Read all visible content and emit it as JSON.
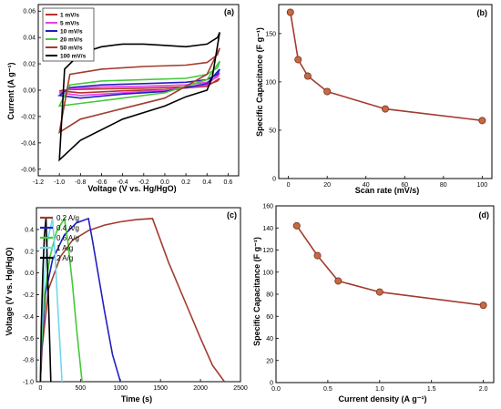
{
  "chart_data": [
    {
      "panel": "(a)",
      "type": "line",
      "xlabel": "Voltage (V vs. Hg/HgO)",
      "ylabel": "Current (A g⁻¹)",
      "xlim": [
        -1.2,
        0.7
      ],
      "ylim": [
        -0.065,
        0.065
      ],
      "xticks": [
        "-1.2",
        "-1.0",
        "-0.8",
        "-0.6",
        "-0.4",
        "-0.2",
        "0.0",
        "0.2",
        "0.4",
        "0.6"
      ],
      "yticks": [
        "-0.06",
        "-0.04",
        "-0.02",
        "0.00",
        "0.02",
        "0.04",
        "0.06"
      ],
      "legend_position": "top-left",
      "series": [
        {
          "name": "1 mV/s",
          "color": "#b5312c",
          "anodic": {
            "x": [
              -1.0,
              -0.9,
              -0.6,
              -0.2,
              0.2,
              0.4,
              0.5,
              0.52
            ],
            "y": [
              -0.0005,
              0.0005,
              0.001,
              0.0015,
              0.0025,
              0.004,
              0.007,
              0.009
            ]
          },
          "cathodic": {
            "x": [
              0.52,
              0.4,
              0.0,
              -0.4,
              -0.8,
              -1.0
            ],
            "y": [
              0.009,
              0.003,
              0.0005,
              -0.0005,
              -0.002,
              -0.0005
            ]
          }
        },
        {
          "name": "5 mV/s",
          "color": "#e93fe8",
          "anodic": {
            "x": [
              -1.0,
              -0.9,
              -0.6,
              -0.2,
              0.2,
              0.4,
              0.5,
              0.52
            ],
            "y": [
              -0.002,
              0.001,
              0.0025,
              0.003,
              0.004,
              0.006,
              0.01,
              0.013
            ]
          },
          "cathodic": {
            "x": [
              0.52,
              0.4,
              0.0,
              -0.4,
              -0.8,
              -1.0
            ],
            "y": [
              0.013,
              0.004,
              0.0,
              -0.002,
              -0.004,
              -0.002
            ]
          }
        },
        {
          "name": "10 mV/s",
          "color": "#2020c0",
          "anodic": {
            "x": [
              -1.0,
              -0.9,
              -0.6,
              -0.2,
              0.2,
              0.4,
              0.5,
              0.52
            ],
            "y": [
              -0.004,
              0.002,
              0.004,
              0.005,
              0.006,
              0.008,
              0.012,
              0.016
            ]
          },
          "cathodic": {
            "x": [
              0.52,
              0.4,
              0.0,
              -0.4,
              -0.8,
              -1.0
            ],
            "y": [
              0.016,
              0.005,
              -0.001,
              -0.003,
              -0.006,
              -0.004
            ]
          }
        },
        {
          "name": "20 mV/s",
          "color": "#46c83a",
          "anodic": {
            "x": [
              -1.0,
              -0.9,
              -0.6,
              -0.2,
              0.2,
              0.4,
              0.5,
              0.52
            ],
            "y": [
              -0.012,
              0.004,
              0.007,
              0.008,
              0.009,
              0.012,
              0.017,
              0.022
            ]
          },
          "cathodic": {
            "x": [
              0.52,
              0.4,
              0.0,
              -0.4,
              -0.8,
              -1.0
            ],
            "y": [
              0.022,
              0.008,
              -0.002,
              -0.006,
              -0.01,
              -0.012
            ]
          }
        },
        {
          "name": "50 mV/s",
          "color": "#a33b2d",
          "anodic": {
            "x": [
              -1.0,
              -0.9,
              -0.6,
              -0.2,
              0.2,
              0.4,
              0.5,
              0.52
            ],
            "y": [
              -0.032,
              0.012,
              0.016,
              0.018,
              0.019,
              0.021,
              0.027,
              0.032
            ]
          },
          "cathodic": {
            "x": [
              0.52,
              0.4,
              0.0,
              -0.4,
              -0.8,
              -1.0
            ],
            "y": [
              0.032,
              0.012,
              -0.006,
              -0.014,
              -0.022,
              -0.032
            ]
          }
        },
        {
          "name": "100 mV/s",
          "color": "#000000",
          "anodic": {
            "x": [
              -1.0,
              -0.95,
              -0.8,
              -0.6,
              -0.4,
              -0.2,
              0.0,
              0.2,
              0.4,
              0.5,
              0.52
            ],
            "y": [
              -0.053,
              0.016,
              0.028,
              0.033,
              0.035,
              0.035,
              0.034,
              0.033,
              0.035,
              0.04,
              0.044
            ]
          },
          "cathodic": {
            "x": [
              0.52,
              0.45,
              0.4,
              0.2,
              0.0,
              -0.4,
              -0.8,
              -1.0
            ],
            "y": [
              0.044,
              0.01,
              0.0,
              -0.005,
              -0.012,
              -0.022,
              -0.038,
              -0.053
            ]
          }
        }
      ]
    },
    {
      "panel": "(b)",
      "type": "line",
      "xlabel": "Scan rate (mV/s)",
      "ylabel": "Specific Capacitance (F g⁻¹)",
      "xlim": [
        -5,
        105
      ],
      "ylim": [
        0,
        180
      ],
      "xticks": [
        "0",
        "20",
        "40",
        "60",
        "80",
        "100"
      ],
      "yticks": [
        "0",
        "50",
        "100",
        "150"
      ],
      "x": [
        1,
        5,
        10,
        20,
        50,
        100
      ],
      "y": [
        172,
        123,
        106,
        90,
        72,
        60
      ],
      "color": "#a33b2d"
    },
    {
      "panel": "(c)",
      "type": "line",
      "xlabel": "Time (s)",
      "ylabel": "Voltage (V vs. Hg/HgO)",
      "xlim": [
        -50,
        2500
      ],
      "ylim": [
        -1.0,
        0.6
      ],
      "xticks": [
        "0",
        "500",
        "1000",
        "1500",
        "2000",
        "2500"
      ],
      "yticks": [
        "-1.0",
        "-0.8",
        "-0.6",
        "-0.4",
        "-0.2",
        "0.0",
        "0.2",
        "0.4"
      ],
      "legend_position": "top-left",
      "series": [
        {
          "name": "0.2 A/g",
          "color": "#a33b2d",
          "x": [
            0,
            20,
            100,
            250,
            400,
            600,
            800,
            1000,
            1200,
            1400,
            1500,
            1600,
            1800,
            2000,
            2150,
            2300
          ],
          "y": [
            -1.0,
            -0.7,
            -0.15,
            0.15,
            0.3,
            0.39,
            0.44,
            0.47,
            0.49,
            0.5,
            0.3,
            0.1,
            -0.25,
            -0.6,
            -0.85,
            -1.0
          ]
        },
        {
          "name": "0.4 A/g",
          "color": "#2020c0",
          "x": [
            0,
            15,
            60,
            150,
            300,
            450,
            600,
            650,
            720,
            800,
            900,
            1000
          ],
          "y": [
            -1.0,
            -0.7,
            -0.2,
            0.12,
            0.35,
            0.46,
            0.5,
            0.3,
            0.0,
            -0.35,
            -0.75,
            -1.0
          ]
        },
        {
          "name": "0.6 A/g",
          "color": "#46c83a",
          "x": [
            0,
            10,
            50,
            120,
            200,
            300,
            340,
            400,
            450,
            520
          ],
          "y": [
            -1.0,
            -0.7,
            -0.2,
            0.15,
            0.38,
            0.5,
            0.3,
            -0.1,
            -0.5,
            -1.0
          ]
        },
        {
          "name": "1 A/g",
          "color": "#6fd8f0",
          "x": [
            0,
            10,
            40,
            90,
            150,
            180,
            220,
            270
          ],
          "y": [
            -1.0,
            -0.6,
            -0.1,
            0.3,
            0.5,
            0.2,
            -0.35,
            -1.0
          ]
        },
        {
          "name": "2 A/g",
          "color": "#000000",
          "x": [
            0,
            10,
            30,
            50,
            70,
            90,
            110,
            130
          ],
          "y": [
            -1.0,
            -0.5,
            0.0,
            0.35,
            0.5,
            0.0,
            -0.5,
            -1.0
          ]
        }
      ]
    },
    {
      "panel": "(d)",
      "type": "line",
      "xlabel": "Current density (A g⁻¹)",
      "ylabel": "Specific Capacitance (F g⁻¹)",
      "xlim": [
        0.0,
        2.1
      ],
      "ylim": [
        0,
        160
      ],
      "xticks": [
        "0.0",
        "0.5",
        "1.0",
        "1.5",
        "2.0"
      ],
      "yticks": [
        "0",
        "20",
        "40",
        "60",
        "80",
        "100",
        "120",
        "140",
        "160"
      ],
      "x": [
        0.2,
        0.4,
        0.6,
        1.0,
        2.0
      ],
      "y": [
        142,
        115,
        92,
        82,
        70
      ],
      "color": "#a33b2d"
    }
  ]
}
